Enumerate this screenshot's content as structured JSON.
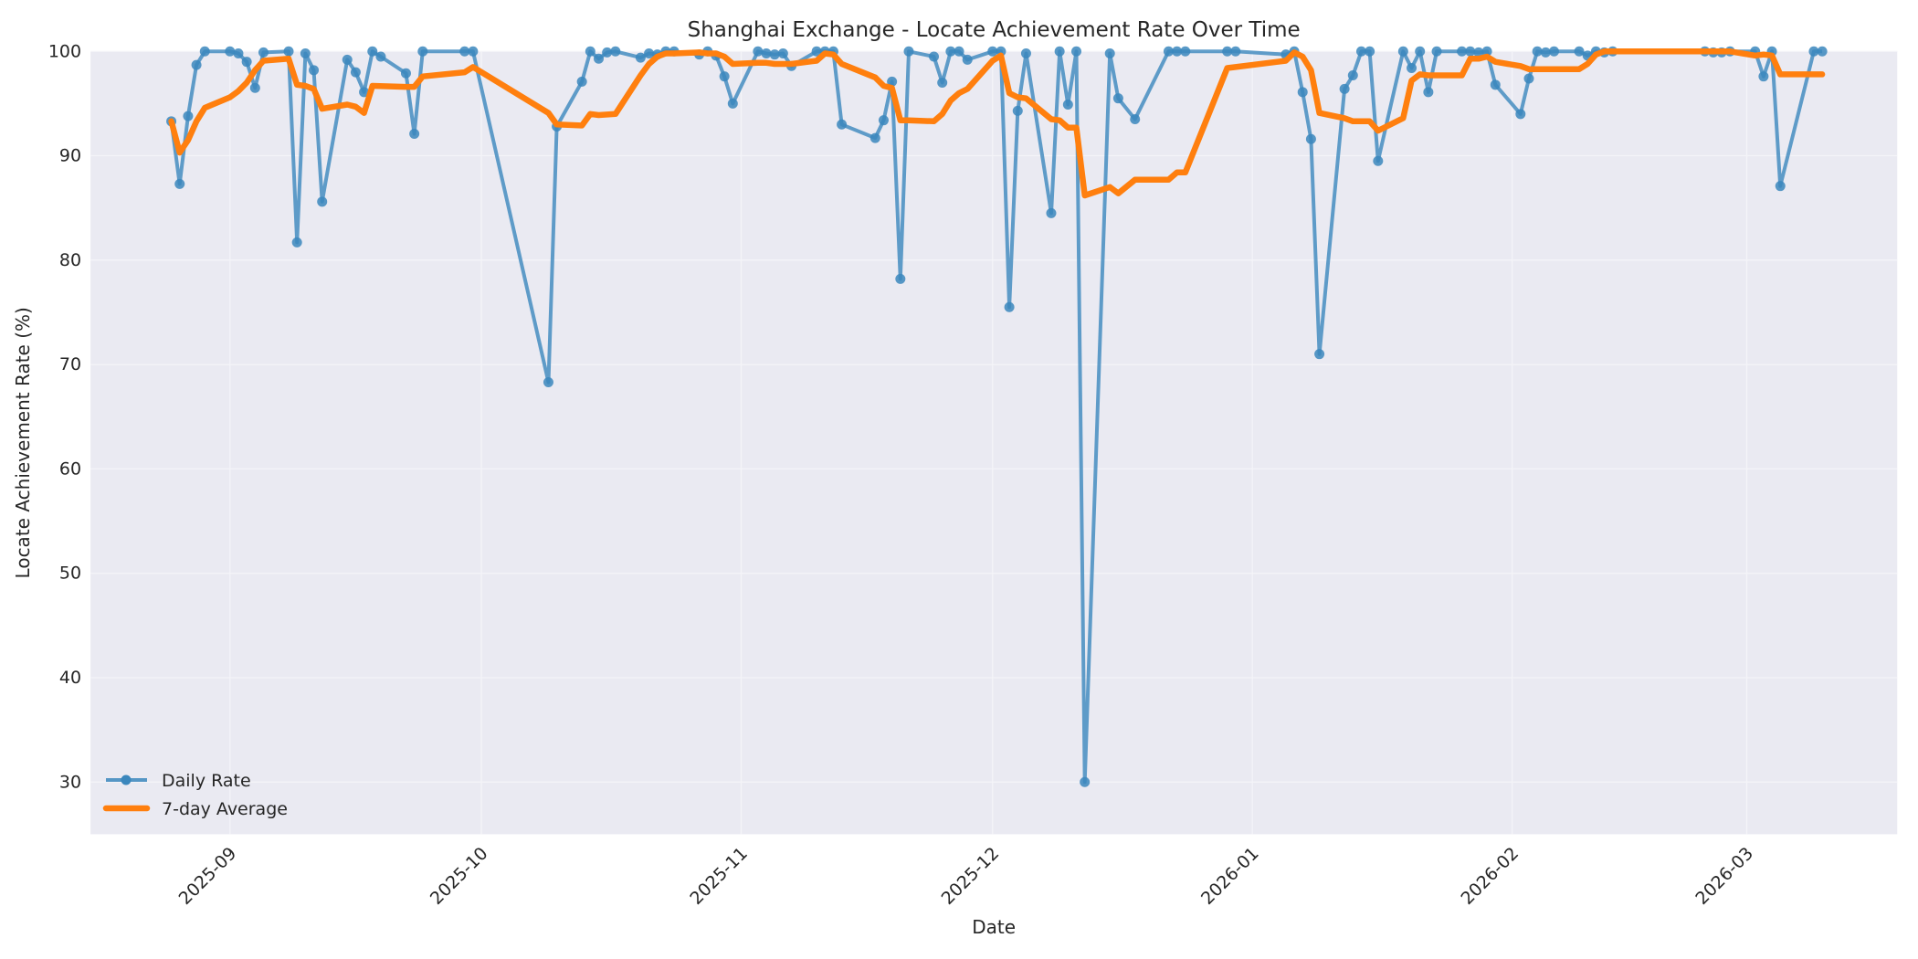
{
  "chart_data": {
    "type": "line",
    "title": "Shanghai Exchange - Locate Achievement Rate Over Time",
    "xlabel": "Date",
    "ylabel": "Locate Achievement Rate (%)",
    "ylim": [
      25,
      100
    ],
    "yticks": [
      30,
      40,
      50,
      60,
      70,
      80,
      90,
      100
    ],
    "xlim": [
      "2025-08-17",
      "2026-03-19"
    ],
    "xticks": [
      "2025-09",
      "2025-10",
      "2025-11",
      "2025-12",
      "2026-01",
      "2026-02",
      "2026-03"
    ],
    "xtick_dates": [
      "2025-09-01",
      "2025-10-01",
      "2025-11-01",
      "2025-12-01",
      "2026-01-01",
      "2026-02-01",
      "2026-03-01"
    ],
    "grid": true,
    "legend_position": "lower left",
    "series": [
      {
        "name": "Daily Rate",
        "color": "#1f77b4",
        "marker": "circle",
        "points": [
          [
            "2025-08-25",
            93.3
          ],
          [
            "2025-08-26",
            87.3
          ],
          [
            "2025-08-27",
            93.8
          ],
          [
            "2025-08-28",
            98.7
          ],
          [
            "2025-08-29",
            100.0
          ],
          [
            "2025-09-01",
            100.0
          ],
          [
            "2025-09-02",
            99.8
          ],
          [
            "2025-09-03",
            99.0
          ],
          [
            "2025-09-04",
            96.5
          ],
          [
            "2025-09-05",
            99.9
          ],
          [
            "2025-09-08",
            100.0
          ],
          [
            "2025-09-09",
            81.7
          ],
          [
            "2025-09-10",
            99.8
          ],
          [
            "2025-09-11",
            98.2
          ],
          [
            "2025-09-12",
            85.6
          ],
          [
            "2025-09-15",
            99.2
          ],
          [
            "2025-09-16",
            98.0
          ],
          [
            "2025-09-17",
            96.1
          ],
          [
            "2025-09-18",
            100.0
          ],
          [
            "2025-09-19",
            99.5
          ],
          [
            "2025-09-22",
            97.9
          ],
          [
            "2025-09-23",
            92.1
          ],
          [
            "2025-09-24",
            100.0
          ],
          [
            "2025-09-29",
            100.0
          ],
          [
            "2025-09-30",
            100.0
          ],
          [
            "2025-10-09",
            68.3
          ],
          [
            "2025-10-10",
            92.8
          ],
          [
            "2025-10-13",
            97.1
          ],
          [
            "2025-10-14",
            100.0
          ],
          [
            "2025-10-15",
            99.3
          ],
          [
            "2025-10-16",
            99.9
          ],
          [
            "2025-10-17",
            100.0
          ],
          [
            "2025-10-20",
            99.4
          ],
          [
            "2025-10-21",
            99.8
          ],
          [
            "2025-10-22",
            99.7
          ],
          [
            "2025-10-23",
            100.0
          ],
          [
            "2025-10-24",
            100.0
          ],
          [
            "2025-10-27",
            99.7
          ],
          [
            "2025-10-28",
            100.0
          ],
          [
            "2025-10-29",
            99.6
          ],
          [
            "2025-10-30",
            97.6
          ],
          [
            "2025-10-31",
            95.0
          ],
          [
            "2025-11-03",
            100.0
          ],
          [
            "2025-11-04",
            99.8
          ],
          [
            "2025-11-05",
            99.7
          ],
          [
            "2025-11-06",
            99.8
          ],
          [
            "2025-11-07",
            98.6
          ],
          [
            "2025-11-10",
            100.0
          ],
          [
            "2025-11-11",
            100.0
          ],
          [
            "2025-11-12",
            100.0
          ],
          [
            "2025-11-13",
            93.0
          ],
          [
            "2025-11-17",
            91.7
          ],
          [
            "2025-11-18",
            93.4
          ],
          [
            "2025-11-19",
            97.1
          ],
          [
            "2025-11-20",
            78.2
          ],
          [
            "2025-11-21",
            100.0
          ],
          [
            "2025-11-24",
            99.5
          ],
          [
            "2025-11-25",
            97.0
          ],
          [
            "2025-11-26",
            100.0
          ],
          [
            "2025-11-27",
            100.0
          ],
          [
            "2025-11-28",
            99.2
          ],
          [
            "2025-12-01",
            100.0
          ],
          [
            "2025-12-02",
            100.0
          ],
          [
            "2025-12-03",
            75.5
          ],
          [
            "2025-12-04",
            94.3
          ],
          [
            "2025-12-05",
            99.8
          ],
          [
            "2025-12-08",
            84.5
          ],
          [
            "2025-12-09",
            100.0
          ],
          [
            "2025-12-10",
            94.9
          ],
          [
            "2025-12-11",
            100.0
          ],
          [
            "2025-12-12",
            30.0
          ],
          [
            "2025-12-15",
            99.8
          ],
          [
            "2025-12-16",
            95.5
          ],
          [
            "2025-12-18",
            93.5
          ],
          [
            "2025-12-22",
            100.0
          ],
          [
            "2025-12-23",
            100.0
          ],
          [
            "2025-12-24",
            100.0
          ],
          [
            "2025-12-29",
            100.0
          ],
          [
            "2025-12-30",
            100.0
          ],
          [
            "2026-01-05",
            99.7
          ],
          [
            "2026-01-06",
            100.0
          ],
          [
            "2026-01-07",
            96.1
          ],
          [
            "2026-01-08",
            91.6
          ],
          [
            "2026-01-09",
            71.0
          ],
          [
            "2026-01-12",
            96.4
          ],
          [
            "2026-01-13",
            97.7
          ],
          [
            "2026-01-14",
            100.0
          ],
          [
            "2026-01-15",
            100.0
          ],
          [
            "2026-01-16",
            89.5
          ],
          [
            "2026-01-19",
            100.0
          ],
          [
            "2026-01-20",
            98.4
          ],
          [
            "2026-01-21",
            100.0
          ],
          [
            "2026-01-22",
            96.1
          ],
          [
            "2026-01-23",
            100.0
          ],
          [
            "2026-01-26",
            100.0
          ],
          [
            "2026-01-27",
            100.0
          ],
          [
            "2026-01-28",
            99.9
          ],
          [
            "2026-01-29",
            100.0
          ],
          [
            "2026-01-30",
            96.8
          ],
          [
            "2026-02-02",
            94.0
          ],
          [
            "2026-02-03",
            97.4
          ],
          [
            "2026-02-04",
            100.0
          ],
          [
            "2026-02-05",
            99.9
          ],
          [
            "2026-02-06",
            100.0
          ],
          [
            "2026-02-09",
            100.0
          ],
          [
            "2026-02-10",
            99.6
          ],
          [
            "2026-02-11",
            100.0
          ],
          [
            "2026-02-12",
            99.9
          ],
          [
            "2026-02-13",
            100.0
          ],
          [
            "2026-02-24",
            100.0
          ],
          [
            "2026-02-25",
            99.9
          ],
          [
            "2026-02-26",
            99.9
          ],
          [
            "2026-02-27",
            100.0
          ],
          [
            "2026-03-02",
            100.0
          ],
          [
            "2026-03-03",
            97.6
          ],
          [
            "2026-03-04",
            100.0
          ],
          [
            "2026-03-05",
            87.1
          ],
          [
            "2026-03-09",
            100.0
          ],
          [
            "2026-03-10",
            100.0
          ]
        ]
      },
      {
        "name": "7-day Average",
        "color": "#ff7f0e",
        "marker": "none",
        "points": [
          [
            "2025-08-25",
            93.3
          ],
          [
            "2025-08-26",
            90.3
          ],
          [
            "2025-08-27",
            91.5
          ],
          [
            "2025-08-28",
            93.3
          ],
          [
            "2025-08-29",
            94.6
          ],
          [
            "2025-09-01",
            95.6
          ],
          [
            "2025-09-02",
            96.2
          ],
          [
            "2025-09-03",
            97.0
          ],
          [
            "2025-09-04",
            98.2
          ],
          [
            "2025-09-05",
            99.1
          ],
          [
            "2025-09-08",
            99.3
          ],
          [
            "2025-09-09",
            96.8
          ],
          [
            "2025-09-10",
            96.7
          ],
          [
            "2025-09-11",
            96.4
          ],
          [
            "2025-09-12",
            94.5
          ],
          [
            "2025-09-15",
            94.9
          ],
          [
            "2025-09-16",
            94.7
          ],
          [
            "2025-09-17",
            94.1
          ],
          [
            "2025-09-18",
            96.7
          ],
          [
            "2025-09-22",
            96.6
          ],
          [
            "2025-09-23",
            96.6
          ],
          [
            "2025-09-24",
            97.6
          ],
          [
            "2025-09-29",
            98.0
          ],
          [
            "2025-09-30",
            98.5
          ],
          [
            "2025-10-09",
            94.1
          ],
          [
            "2025-10-10",
            93.0
          ],
          [
            "2025-10-13",
            92.9
          ],
          [
            "2025-10-14",
            94.0
          ],
          [
            "2025-10-15",
            93.9
          ],
          [
            "2025-10-17",
            94.0
          ],
          [
            "2025-10-20",
            97.7
          ],
          [
            "2025-10-21",
            98.8
          ],
          [
            "2025-10-22",
            99.5
          ],
          [
            "2025-10-23",
            99.8
          ],
          [
            "2025-10-24",
            99.8
          ],
          [
            "2025-10-27",
            99.9
          ],
          [
            "2025-10-28",
            99.8
          ],
          [
            "2025-10-29",
            99.8
          ],
          [
            "2025-10-30",
            99.5
          ],
          [
            "2025-10-31",
            98.8
          ],
          [
            "2025-11-03",
            98.9
          ],
          [
            "2025-11-04",
            98.9
          ],
          [
            "2025-11-05",
            98.8
          ],
          [
            "2025-11-07",
            98.8
          ],
          [
            "2025-11-10",
            99.1
          ],
          [
            "2025-11-11",
            99.8
          ],
          [
            "2025-11-12",
            99.7
          ],
          [
            "2025-11-13",
            98.8
          ],
          [
            "2025-11-17",
            97.5
          ],
          [
            "2025-11-18",
            96.7
          ],
          [
            "2025-11-19",
            96.5
          ],
          [
            "2025-11-20",
            93.4
          ],
          [
            "2025-11-21",
            93.4
          ],
          [
            "2025-11-24",
            93.3
          ],
          [
            "2025-11-25",
            94.0
          ],
          [
            "2025-11-26",
            95.3
          ],
          [
            "2025-11-27",
            96.0
          ],
          [
            "2025-11-28",
            96.4
          ],
          [
            "2025-12-01",
            99.1
          ],
          [
            "2025-12-02",
            99.6
          ],
          [
            "2025-12-03",
            96.0
          ],
          [
            "2025-12-04",
            95.6
          ],
          [
            "2025-12-05",
            95.5
          ],
          [
            "2025-12-08",
            93.5
          ],
          [
            "2025-12-09",
            93.4
          ],
          [
            "2025-12-10",
            92.7
          ],
          [
            "2025-12-11",
            92.7
          ],
          [
            "2025-12-12",
            86.2
          ],
          [
            "2025-12-15",
            87.0
          ],
          [
            "2025-12-16",
            86.4
          ],
          [
            "2025-12-18",
            87.7
          ],
          [
            "2025-12-22",
            87.7
          ],
          [
            "2025-12-23",
            88.4
          ],
          [
            "2025-12-24",
            88.4
          ],
          [
            "2025-12-29",
            98.4
          ],
          [
            "2025-12-30",
            98.5
          ],
          [
            "2026-01-05",
            99.1
          ],
          [
            "2026-01-06",
            99.9
          ],
          [
            "2026-01-07",
            99.5
          ],
          [
            "2026-01-08",
            98.2
          ],
          [
            "2026-01-09",
            94.1
          ],
          [
            "2026-01-12",
            93.6
          ],
          [
            "2026-01-13",
            93.3
          ],
          [
            "2026-01-14",
            93.3
          ],
          [
            "2026-01-15",
            93.3
          ],
          [
            "2026-01-16",
            92.4
          ],
          [
            "2026-01-19",
            93.6
          ],
          [
            "2026-01-20",
            97.2
          ],
          [
            "2026-01-21",
            97.8
          ],
          [
            "2026-01-22",
            97.7
          ],
          [
            "2026-01-23",
            97.7
          ],
          [
            "2026-01-26",
            97.7
          ],
          [
            "2026-01-27",
            99.3
          ],
          [
            "2026-01-28",
            99.3
          ],
          [
            "2026-01-29",
            99.5
          ],
          [
            "2026-01-30",
            99.0
          ],
          [
            "2026-02-02",
            98.6
          ],
          [
            "2026-02-03",
            98.3
          ],
          [
            "2026-02-04",
            98.3
          ],
          [
            "2026-02-05",
            98.3
          ],
          [
            "2026-02-09",
            98.3
          ],
          [
            "2026-02-10",
            98.8
          ],
          [
            "2026-02-11",
            99.7
          ],
          [
            "2026-02-12",
            100.0
          ],
          [
            "2026-02-13",
            100.0
          ],
          [
            "2026-02-24",
            100.0
          ],
          [
            "2026-02-27",
            100.0
          ],
          [
            "2026-03-02",
            99.6
          ],
          [
            "2026-03-03",
            99.7
          ],
          [
            "2026-03-04",
            99.6
          ],
          [
            "2026-03-05",
            97.8
          ],
          [
            "2026-03-09",
            97.8
          ],
          [
            "2026-03-10",
            97.8
          ]
        ]
      }
    ]
  },
  "legend": {
    "items": [
      {
        "label": "Daily Rate",
        "color": "#1f77b4"
      },
      {
        "label": "7-day Average",
        "color": "#ff7f0e"
      }
    ]
  },
  "style": {
    "plot_bg": "#eaeaf2",
    "grid_color": "#f4f4f8",
    "daily_color": "#3b87bd",
    "avg_color": "#ff7f0e"
  }
}
